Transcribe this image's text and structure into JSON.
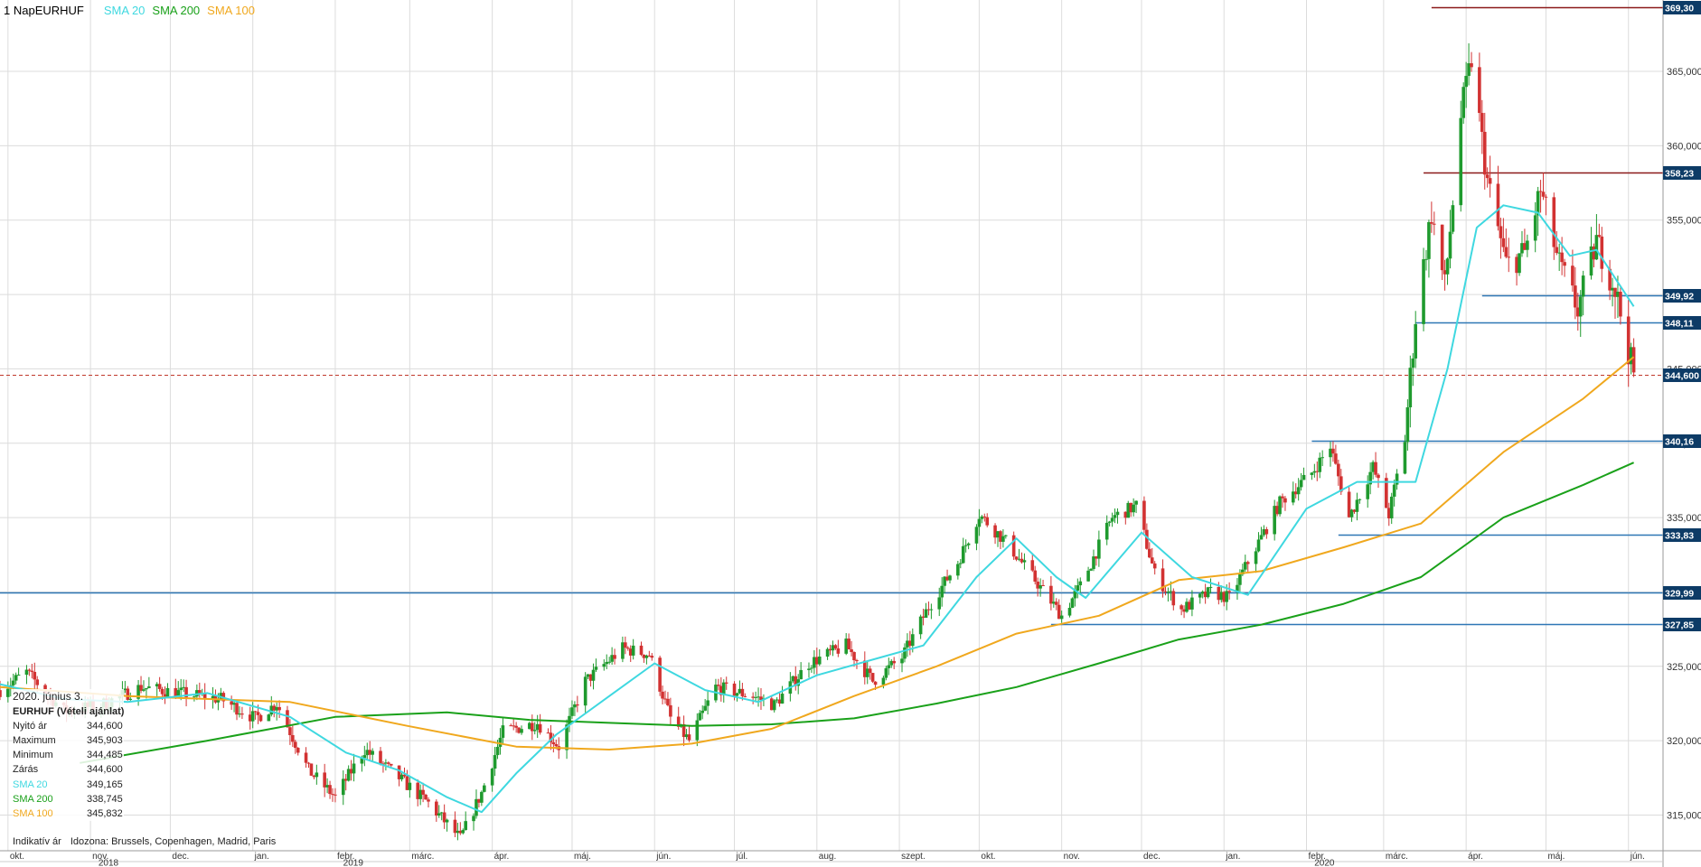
{
  "header": {
    "timeframe": "1 Nap",
    "symbol": "EURHUF",
    "indicators": [
      {
        "label": "SMA 20",
        "color": "#3fd8e0"
      },
      {
        "label": "SMA 200",
        "color": "#1aa11a"
      },
      {
        "label": "SMA 100",
        "color": "#f0a81e"
      }
    ]
  },
  "info_box": {
    "date": "2020. június 3.",
    "title": "EURHUF (Vételi ajánlat)",
    "rows": [
      {
        "label": "Nyitó ár",
        "value": "344,600",
        "color": "#222222"
      },
      {
        "label": "Maximum",
        "value": "345,903",
        "color": "#222222"
      },
      {
        "label": "Minimum",
        "value": "344,485",
        "color": "#222222"
      },
      {
        "label": "Zárás",
        "value": "344,600",
        "color": "#222222"
      },
      {
        "label": "SMA 20",
        "value": "349,165",
        "color": "#3fd8e0"
      },
      {
        "label": "SMA 200",
        "value": "338,745",
        "color": "#1aa11a"
      },
      {
        "label": "SMA 100",
        "value": "345,832",
        "color": "#f0a81e"
      }
    ]
  },
  "footer_note": {
    "indicative": "Indikatív ár",
    "timezone": "Idozona: Brussels, Copenhagen, Madrid, Paris"
  },
  "colors": {
    "up": "#1f9a2e",
    "down": "#d23232",
    "grid": "#dcdcdc",
    "resistance": "#8b1a1a",
    "support": "#2e77b5",
    "current": "#c0392b",
    "label_bg": "#0d3b66"
  },
  "chart_data": {
    "type": "candlestick",
    "symbol": "EURHUF",
    "timeframe": "1 Nap",
    "ylim": [
      312.6,
      369.8
    ],
    "y_ticks": [
      "315,000",
      "320,000",
      "325,000",
      "330,000",
      "335,000",
      "340,000",
      "345,000",
      "350,000",
      "355,000",
      "360,000",
      "365,000"
    ],
    "y_tick_values": [
      315,
      320,
      325,
      330,
      335,
      340,
      345,
      350,
      355,
      360,
      365
    ],
    "x_months": [
      {
        "label": "okt.",
        "date": "2018-10-01"
      },
      {
        "label": "nov.",
        "date": "2018-11-01"
      },
      {
        "label": "dec.",
        "date": "2018-12-01"
      },
      {
        "label": "jan.",
        "date": "2019-01-01"
      },
      {
        "label": "febr.",
        "date": "2019-02-01"
      },
      {
        "label": "márc.",
        "date": "2019-03-01"
      },
      {
        "label": "ápr.",
        "date": "2019-04-01"
      },
      {
        "label": "máj.",
        "date": "2019-05-01"
      },
      {
        "label": "jún.",
        "date": "2019-06-01"
      },
      {
        "label": "júl.",
        "date": "2019-07-01"
      },
      {
        "label": "aug.",
        "date": "2019-08-01"
      },
      {
        "label": "szept.",
        "date": "2019-09-01"
      },
      {
        "label": "okt.",
        "date": "2019-10-01"
      },
      {
        "label": "nov.",
        "date": "2019-11-01"
      },
      {
        "label": "dec.",
        "date": "2019-12-01"
      },
      {
        "label": "jan.",
        "date": "2020-01-01"
      },
      {
        "label": "febr.",
        "date": "2020-02-01"
      },
      {
        "label": "márc.",
        "date": "2020-03-01"
      },
      {
        "label": "ápr.",
        "date": "2020-04-01"
      },
      {
        "label": "máj.",
        "date": "2020-05-01"
      },
      {
        "label": "jún.",
        "date": "2020-06-01"
      }
    ],
    "x_years": [
      {
        "label": "2018",
        "date": "2018-10-01"
      },
      {
        "label": "2019",
        "date": "2019-01-01"
      },
      {
        "label": "2020",
        "date": "2020-01-01"
      }
    ],
    "x_range": [
      "2018-09-28",
      "2020-06-14"
    ],
    "price_path": [
      {
        "date": "2018-09-28",
        "close": 323.4
      },
      {
        "date": "2018-10-08",
        "close": 324.6
      },
      {
        "date": "2018-10-22",
        "close": 322.0
      },
      {
        "date": "2018-11-05",
        "close": 322.4
      },
      {
        "date": "2018-11-20",
        "close": 323.6
      },
      {
        "date": "2018-12-05",
        "close": 323.2
      },
      {
        "date": "2018-12-20",
        "close": 322.8
      },
      {
        "date": "2019-01-02",
        "close": 321.5
      },
      {
        "date": "2019-01-10",
        "close": 322.5
      },
      {
        "date": "2019-01-22",
        "close": 318.0
      },
      {
        "date": "2019-02-01",
        "close": 316.2
      },
      {
        "date": "2019-02-12",
        "close": 319.4
      },
      {
        "date": "2019-02-25",
        "close": 317.5
      },
      {
        "date": "2019-03-08",
        "close": 315.8
      },
      {
        "date": "2019-03-20",
        "close": 313.4
      },
      {
        "date": "2019-03-28",
        "close": 316.5
      },
      {
        "date": "2019-04-05",
        "close": 320.6
      },
      {
        "date": "2019-04-18",
        "close": 321.2
      },
      {
        "date": "2019-04-26",
        "close": 319.6
      },
      {
        "date": "2019-05-06",
        "close": 324.0
      },
      {
        "date": "2019-05-20",
        "close": 326.2
      },
      {
        "date": "2019-05-30",
        "close": 325.8
      },
      {
        "date": "2019-06-07",
        "close": 321.5
      },
      {
        "date": "2019-06-14",
        "close": 320.0
      },
      {
        "date": "2019-06-24",
        "close": 323.6
      },
      {
        "date": "2019-07-08",
        "close": 323.0
      },
      {
        "date": "2019-07-16",
        "close": 322.4
      },
      {
        "date": "2019-07-29",
        "close": 325.2
      },
      {
        "date": "2019-08-12",
        "close": 326.4
      },
      {
        "date": "2019-08-22",
        "close": 324.0
      },
      {
        "date": "2019-09-02",
        "close": 325.6
      },
      {
        "date": "2019-09-12",
        "close": 329.0
      },
      {
        "date": "2019-09-23",
        "close": 332.0
      },
      {
        "date": "2019-10-01",
        "close": 335.2
      },
      {
        "date": "2019-10-11",
        "close": 333.4
      },
      {
        "date": "2019-10-22",
        "close": 330.8
      },
      {
        "date": "2019-11-01",
        "close": 328.4
      },
      {
        "date": "2019-11-08",
        "close": 330.4
      },
      {
        "date": "2019-11-20",
        "close": 335.0
      },
      {
        "date": "2019-11-29",
        "close": 335.8
      },
      {
        "date": "2019-12-06",
        "close": 331.2
      },
      {
        "date": "2019-12-16",
        "close": 328.8
      },
      {
        "date": "2019-12-27",
        "close": 330.0
      },
      {
        "date": "2020-01-03",
        "close": 329.6
      },
      {
        "date": "2020-01-10",
        "close": 332.0
      },
      {
        "date": "2020-01-22",
        "close": 336.0
      },
      {
        "date": "2020-02-03",
        "close": 338.0
      },
      {
        "date": "2020-02-10",
        "close": 339.8
      },
      {
        "date": "2020-02-17",
        "close": 335.0
      },
      {
        "date": "2020-02-26",
        "close": 338.4
      },
      {
        "date": "2020-03-03",
        "close": 335.2
      },
      {
        "date": "2020-03-09",
        "close": 340.4
      },
      {
        "date": "2020-03-13",
        "close": 348.5
      },
      {
        "date": "2020-03-19",
        "close": 355.5
      },
      {
        "date": "2020-03-24",
        "close": 350.5
      },
      {
        "date": "2020-03-30",
        "close": 362.0
      },
      {
        "date": "2020-04-03",
        "close": 365.8
      },
      {
        "date": "2020-04-09",
        "close": 357.6
      },
      {
        "date": "2020-04-16",
        "close": 352.0
      },
      {
        "date": "2020-04-23",
        "close": 352.8
      },
      {
        "date": "2020-04-29",
        "close": 357.0
      },
      {
        "date": "2020-05-06",
        "close": 352.0
      },
      {
        "date": "2020-05-13",
        "close": 349.0
      },
      {
        "date": "2020-05-20",
        "close": 353.6
      },
      {
        "date": "2020-05-27",
        "close": 350.4
      },
      {
        "date": "2020-06-03",
        "close": 344.6
      }
    ],
    "sma20": [
      {
        "date": "2018-09-28",
        "value": 323.8
      },
      {
        "date": "2018-10-22",
        "value": 322.8
      },
      {
        "date": "2018-11-15",
        "value": 322.6
      },
      {
        "date": "2018-12-15",
        "value": 323.2
      },
      {
        "date": "2019-01-15",
        "value": 321.6
      },
      {
        "date": "2019-02-05",
        "value": 319.2
      },
      {
        "date": "2019-02-25",
        "value": 318.0
      },
      {
        "date": "2019-03-15",
        "value": 316.2
      },
      {
        "date": "2019-03-28",
        "value": 315.2
      },
      {
        "date": "2019-04-10",
        "value": 317.8
      },
      {
        "date": "2019-04-25",
        "value": 320.4
      },
      {
        "date": "2019-05-15",
        "value": 323.0
      },
      {
        "date": "2019-06-01",
        "value": 325.2
      },
      {
        "date": "2019-06-20",
        "value": 323.4
      },
      {
        "date": "2019-07-10",
        "value": 322.6
      },
      {
        "date": "2019-08-01",
        "value": 324.4
      },
      {
        "date": "2019-08-25",
        "value": 325.6
      },
      {
        "date": "2019-09-10",
        "value": 326.4
      },
      {
        "date": "2019-09-30",
        "value": 331.0
      },
      {
        "date": "2019-10-15",
        "value": 333.6
      },
      {
        "date": "2019-10-30",
        "value": 331.0
      },
      {
        "date": "2019-11-10",
        "value": 329.6
      },
      {
        "date": "2019-12-01",
        "value": 334.0
      },
      {
        "date": "2019-12-20",
        "value": 331.0
      },
      {
        "date": "2020-01-10",
        "value": 329.8
      },
      {
        "date": "2020-02-01",
        "value": 335.6
      },
      {
        "date": "2020-02-20",
        "value": 337.4
      },
      {
        "date": "2020-03-05",
        "value": 337.4
      },
      {
        "date": "2020-03-13",
        "value": 337.4
      },
      {
        "date": "2020-03-25",
        "value": 345.0
      },
      {
        "date": "2020-04-05",
        "value": 354.5
      },
      {
        "date": "2020-04-15",
        "value": 356.0
      },
      {
        "date": "2020-04-28",
        "value": 355.5
      },
      {
        "date": "2020-05-10",
        "value": 352.6
      },
      {
        "date": "2020-05-20",
        "value": 353.0
      },
      {
        "date": "2020-06-03",
        "value": 349.2
      }
    ],
    "sma100": [
      {
        "date": "2018-09-28",
        "value": 323.6
      },
      {
        "date": "2018-11-15",
        "value": 323.0
      },
      {
        "date": "2019-01-15",
        "value": 322.6
      },
      {
        "date": "2019-02-28",
        "value": 321.0
      },
      {
        "date": "2019-04-10",
        "value": 319.6
      },
      {
        "date": "2019-05-15",
        "value": 319.4
      },
      {
        "date": "2019-06-15",
        "value": 319.8
      },
      {
        "date": "2019-07-15",
        "value": 320.8
      },
      {
        "date": "2019-08-15",
        "value": 323.0
      },
      {
        "date": "2019-09-15",
        "value": 325.0
      },
      {
        "date": "2019-10-15",
        "value": 327.2
      },
      {
        "date": "2019-11-15",
        "value": 328.4
      },
      {
        "date": "2019-12-15",
        "value": 330.8
      },
      {
        "date": "2020-01-15",
        "value": 331.4
      },
      {
        "date": "2020-02-15",
        "value": 333.0
      },
      {
        "date": "2020-03-15",
        "value": 334.6
      },
      {
        "date": "2020-04-15",
        "value": 339.4
      },
      {
        "date": "2020-05-15",
        "value": 343.0
      },
      {
        "date": "2020-06-03",
        "value": 345.8
      }
    ],
    "sma200": [
      {
        "date": "2018-10-28",
        "value": 318.5
      },
      {
        "date": "2018-12-15",
        "value": 320.0
      },
      {
        "date": "2019-02-01",
        "value": 321.6
      },
      {
        "date": "2019-03-15",
        "value": 321.9
      },
      {
        "date": "2019-04-15",
        "value": 321.4
      },
      {
        "date": "2019-05-15",
        "value": 321.2
      },
      {
        "date": "2019-06-15",
        "value": 321.0
      },
      {
        "date": "2019-07-15",
        "value": 321.1
      },
      {
        "date": "2019-08-15",
        "value": 321.5
      },
      {
        "date": "2019-09-15",
        "value": 322.5
      },
      {
        "date": "2019-10-15",
        "value": 323.6
      },
      {
        "date": "2019-11-15",
        "value": 325.2
      },
      {
        "date": "2019-12-15",
        "value": 326.8
      },
      {
        "date": "2020-01-15",
        "value": 327.8
      },
      {
        "date": "2020-02-15",
        "value": 329.2
      },
      {
        "date": "2020-03-15",
        "value": 331.0
      },
      {
        "date": "2020-04-15",
        "value": 335.0
      },
      {
        "date": "2020-05-15",
        "value": 337.2
      },
      {
        "date": "2020-06-03",
        "value": 338.7
      }
    ],
    "levels": [
      {
        "label": "369,30",
        "value": 369.3,
        "kind": "resistance",
        "from": "2020-03-19"
      },
      {
        "label": "358,23",
        "value": 358.23,
        "kind": "resistance",
        "from": "2020-03-16"
      },
      {
        "label": "349,92",
        "value": 349.92,
        "kind": "support",
        "from": "2020-04-07"
      },
      {
        "label": "348,11",
        "value": 348.11,
        "kind": "support",
        "from": "2020-03-13"
      },
      {
        "label": "344,600",
        "value": 344.6,
        "kind": "current",
        "from": "2018-09-28"
      },
      {
        "label": "340,16",
        "value": 340.16,
        "kind": "support",
        "from": "2020-02-03"
      },
      {
        "label": "333,83",
        "value": 333.83,
        "kind": "support",
        "from": "2020-02-13"
      },
      {
        "label": "329,99",
        "value": 329.99,
        "kind": "support",
        "from": "2018-09-28"
      },
      {
        "label": "327,85",
        "value": 327.85,
        "kind": "support",
        "from": "2019-10-28"
      }
    ]
  }
}
